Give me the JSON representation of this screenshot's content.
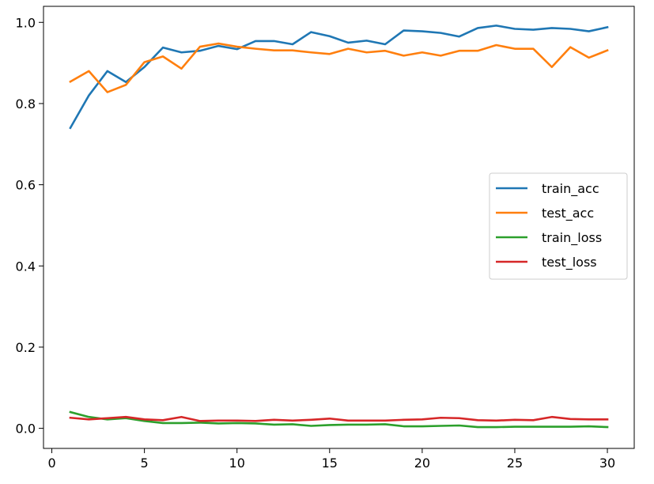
{
  "chart_data": {
    "type": "line",
    "title": "",
    "xlabel": "",
    "ylabel": "",
    "x": [
      1,
      2,
      3,
      4,
      5,
      6,
      7,
      8,
      9,
      10,
      11,
      12,
      13,
      14,
      15,
      16,
      17,
      18,
      19,
      20,
      21,
      22,
      23,
      24,
      25,
      26,
      27,
      28,
      29,
      30
    ],
    "xlim": [
      -0.45,
      31.45
    ],
    "ylim": [
      -0.0495,
      1.0395
    ],
    "xticks": [
      0,
      5,
      10,
      15,
      20,
      25,
      30
    ],
    "xtick_labels": [
      "0",
      "5",
      "10",
      "15",
      "20",
      "25",
      "30"
    ],
    "yticks": [
      0.0,
      0.2,
      0.4,
      0.6,
      0.8,
      1.0
    ],
    "ytick_labels": [
      "0.0",
      "0.2",
      "0.4",
      "0.6",
      "0.8",
      "1.0"
    ],
    "grid": false,
    "legend_position": "center-right",
    "series": [
      {
        "name": "train_acc",
        "color": "#1f77b4",
        "values": [
          0.74,
          0.82,
          0.88,
          0.853,
          0.89,
          0.938,
          0.926,
          0.93,
          0.942,
          0.934,
          0.954,
          0.954,
          0.946,
          0.976,
          0.966,
          0.95,
          0.955,
          0.946,
          0.98,
          0.978,
          0.974,
          0.965,
          0.986,
          0.992,
          0.984,
          0.982,
          0.986,
          0.984,
          0.978,
          0.988
        ]
      },
      {
        "name": "test_acc",
        "color": "#ff7f0e",
        "values": [
          0.854,
          0.88,
          0.828,
          0.846,
          0.902,
          0.916,
          0.886,
          0.94,
          0.948,
          0.94,
          0.935,
          0.931,
          0.931,
          0.926,
          0.922,
          0.935,
          0.926,
          0.93,
          0.918,
          0.926,
          0.918,
          0.93,
          0.93,
          0.944,
          0.935,
          0.935,
          0.89,
          0.939,
          0.913,
          0.931
        ]
      },
      {
        "name": "train_loss",
        "color": "#2ca02c",
        "values": [
          0.04,
          0.028,
          0.022,
          0.025,
          0.018,
          0.013,
          0.013,
          0.014,
          0.012,
          0.013,
          0.012,
          0.009,
          0.01,
          0.006,
          0.008,
          0.009,
          0.009,
          0.01,
          0.005,
          0.005,
          0.006,
          0.007,
          0.003,
          0.003,
          0.004,
          0.004,
          0.004,
          0.004,
          0.005,
          0.003
        ]
      },
      {
        "name": "test_loss",
        "color": "#d62728",
        "values": [
          0.026,
          0.022,
          0.025,
          0.028,
          0.022,
          0.02,
          0.028,
          0.018,
          0.019,
          0.019,
          0.018,
          0.021,
          0.019,
          0.021,
          0.024,
          0.019,
          0.019,
          0.019,
          0.021,
          0.022,
          0.026,
          0.025,
          0.02,
          0.019,
          0.021,
          0.02,
          0.028,
          0.023,
          0.022,
          0.022
        ]
      }
    ]
  }
}
